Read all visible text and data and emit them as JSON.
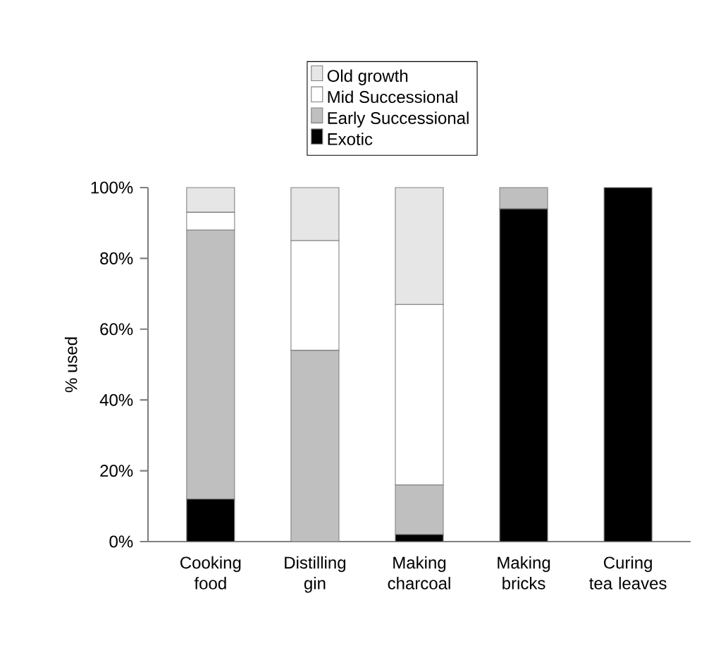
{
  "chart_data": {
    "type": "bar",
    "stacked": true,
    "ylabel": "% used",
    "categories": [
      "Cooking food",
      "Distilling gin",
      "Making charcoal",
      "Making bricks",
      "Curing tea leaves"
    ],
    "series": [
      {
        "name": "Exotic",
        "color": "#000000",
        "values": [
          12,
          0,
          2,
          94,
          100
        ]
      },
      {
        "name": "Early Successional",
        "color": "#bfbfbf",
        "values": [
          76,
          54,
          14,
          6,
          0
        ]
      },
      {
        "name": "Mid Successional",
        "color": "#ffffff",
        "values": [
          5,
          31,
          51,
          0,
          0
        ]
      },
      {
        "name": "Old growth",
        "color": "#e6e6e6",
        "values": [
          7,
          15,
          33,
          0,
          0
        ]
      }
    ],
    "ylim": [
      0,
      100
    ],
    "yticks": [
      {
        "value": 0,
        "label": "0%"
      },
      {
        "value": 20,
        "label": "20%"
      },
      {
        "value": 40,
        "label": "40%"
      },
      {
        "value": 60,
        "label": "60%"
      },
      {
        "value": 80,
        "label": "80%"
      },
      {
        "value": 100,
        "label": "100%"
      }
    ],
    "legend": "top",
    "grid": false
  }
}
